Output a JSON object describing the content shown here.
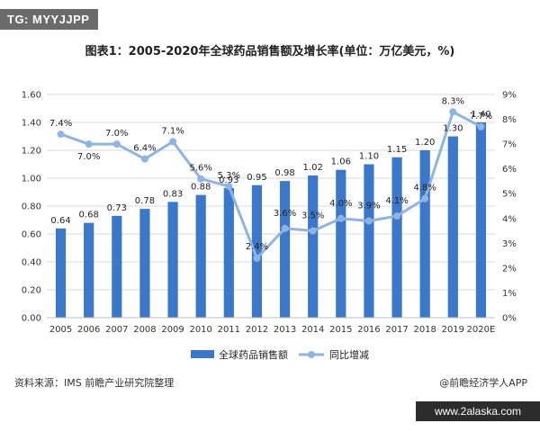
{
  "tag": "TG: MYYJJPP",
  "title": "图表1：2005-2020年全球药品销售额及增长率(单位：万亿美元，%)",
  "source": "资料来源：IMS 前瞻产业研究院整理",
  "credit": "@前瞻经济学人APP",
  "site": "www.2alaska.com",
  "colors": {
    "bar": "#3b78c9",
    "line": "#8db4e2",
    "grid": "#d9d9d9"
  },
  "chart_data": {
    "type": "bar",
    "categories": [
      "2005",
      "2006",
      "2007",
      "2008",
      "2009",
      "2010",
      "2011",
      "2012",
      "2013",
      "2014",
      "2015",
      "2016",
      "2017",
      "2018",
      "2019",
      "2020E"
    ],
    "series": [
      {
        "name": "全球药品销售额",
        "type": "bar",
        "axis": "left",
        "values": [
          0.64,
          0.68,
          0.73,
          0.78,
          0.83,
          0.88,
          0.93,
          0.95,
          0.98,
          1.02,
          1.06,
          1.1,
          1.15,
          1.2,
          1.3,
          1.4
        ],
        "labels": [
          "0.64",
          "0.68",
          "0.73",
          "0.78",
          "0.83",
          "0.88",
          "0.93",
          "0.95",
          "0.98",
          "1.02",
          "1.06",
          "1.10",
          "1.15",
          "1.20",
          "1.30",
          "1.40"
        ]
      },
      {
        "name": "同比增减",
        "type": "line",
        "axis": "right",
        "values": [
          7.4,
          7.0,
          7.0,
          6.4,
          7.1,
          5.6,
          5.3,
          2.4,
          3.6,
          3.5,
          4.0,
          3.9,
          4.1,
          4.8,
          8.3,
          7.7
        ],
        "labels": [
          "7.4%",
          "7.0%",
          "7.0%",
          "6.4%",
          "7.1%",
          "5.6%",
          "5.3%",
          "2.4%",
          "3.6%",
          "3.5%",
          "4.0%",
          "3.9%",
          "4.1%",
          "4.8%",
          "8.3%",
          "7.7%"
        ]
      }
    ],
    "yleft_ticks": [
      "0.00",
      "0.20",
      "0.40",
      "0.60",
      "0.80",
      "1.00",
      "1.20",
      "1.40",
      "1.60"
    ],
    "yleft_lim": [
      0,
      1.6
    ],
    "yright_ticks": [
      "0%",
      "1%",
      "2%",
      "3%",
      "4%",
      "5%",
      "6%",
      "7%",
      "8%",
      "9%"
    ],
    "yright_lim": [
      0,
      9
    ],
    "grid": true,
    "legend": "bottom"
  }
}
